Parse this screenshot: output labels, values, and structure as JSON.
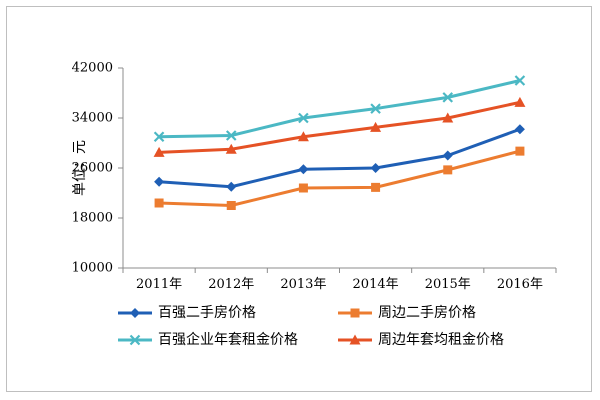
{
  "chart_data": {
    "type": "line",
    "title": "",
    "xlabel": "",
    "ylabel": "单位：元",
    "ylim": [
      10000,
      42000
    ],
    "yticks": [
      10000,
      18000,
      26000,
      34000,
      42000
    ],
    "grid": false,
    "legend_position": "bottom",
    "categories": [
      "2011年",
      "2012年",
      "2013年",
      "2014年",
      "2015年",
      "2016年"
    ],
    "series": [
      {
        "name": "百强二手房价格",
        "color": "#1f5fb5",
        "marker": "diamond",
        "values": [
          23800,
          23000,
          25800,
          26000,
          28000,
          32200
        ]
      },
      {
        "name": "周边二手房价格",
        "color": "#ec7c30",
        "marker": "square",
        "values": [
          20400,
          20000,
          22800,
          22900,
          25700,
          28700
        ]
      },
      {
        "name": "百强企业年套租金价格",
        "color": "#4bb8c4",
        "marker": "x",
        "values": [
          31000,
          31200,
          34000,
          35500,
          37300,
          40000
        ]
      },
      {
        "name": "周边年套均租金价格",
        "color": "#e55225",
        "marker": "triangle",
        "values": [
          28500,
          29000,
          31000,
          32500,
          34000,
          36500
        ]
      }
    ]
  }
}
